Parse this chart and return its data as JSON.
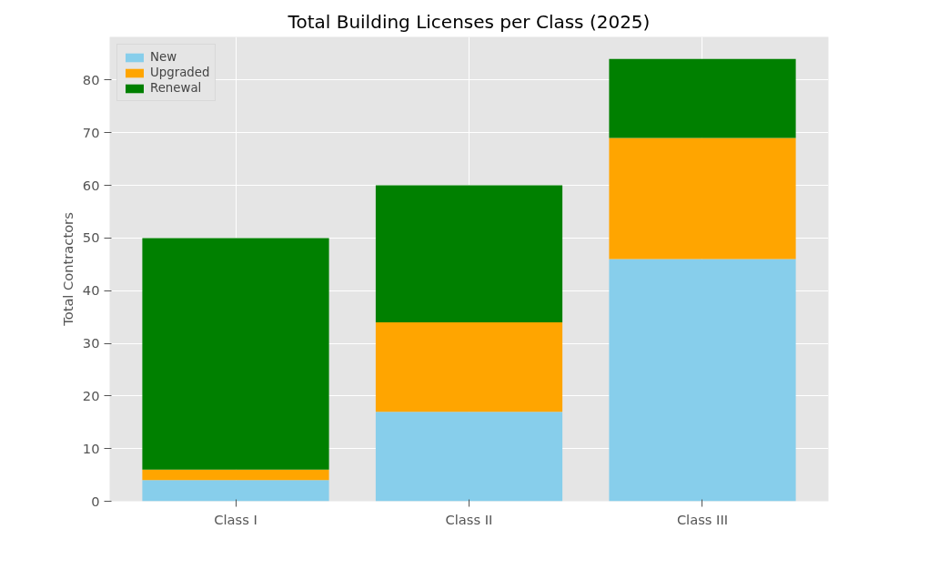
{
  "chart_data": {
    "type": "bar",
    "title": "Total Building Licenses per Class (2025)",
    "ylabel": "Total Contractors",
    "categories": [
      "Class I",
      "Class II",
      "Class III"
    ],
    "stacked": true,
    "series": [
      {
        "name": "New",
        "color": "#87ceeb",
        "values": [
          4,
          17,
          46
        ]
      },
      {
        "name": "Upgraded",
        "color": "#ffa500",
        "values": [
          2,
          17,
          23
        ]
      },
      {
        "name": "Renewal",
        "color": "#008000",
        "values": [
          44,
          26,
          15
        ]
      }
    ],
    "ylim": [
      0,
      88.2
    ],
    "yticks": [
      0,
      10,
      20,
      30,
      40,
      50,
      60,
      70,
      80
    ],
    "grid": true,
    "legend": "top left"
  }
}
